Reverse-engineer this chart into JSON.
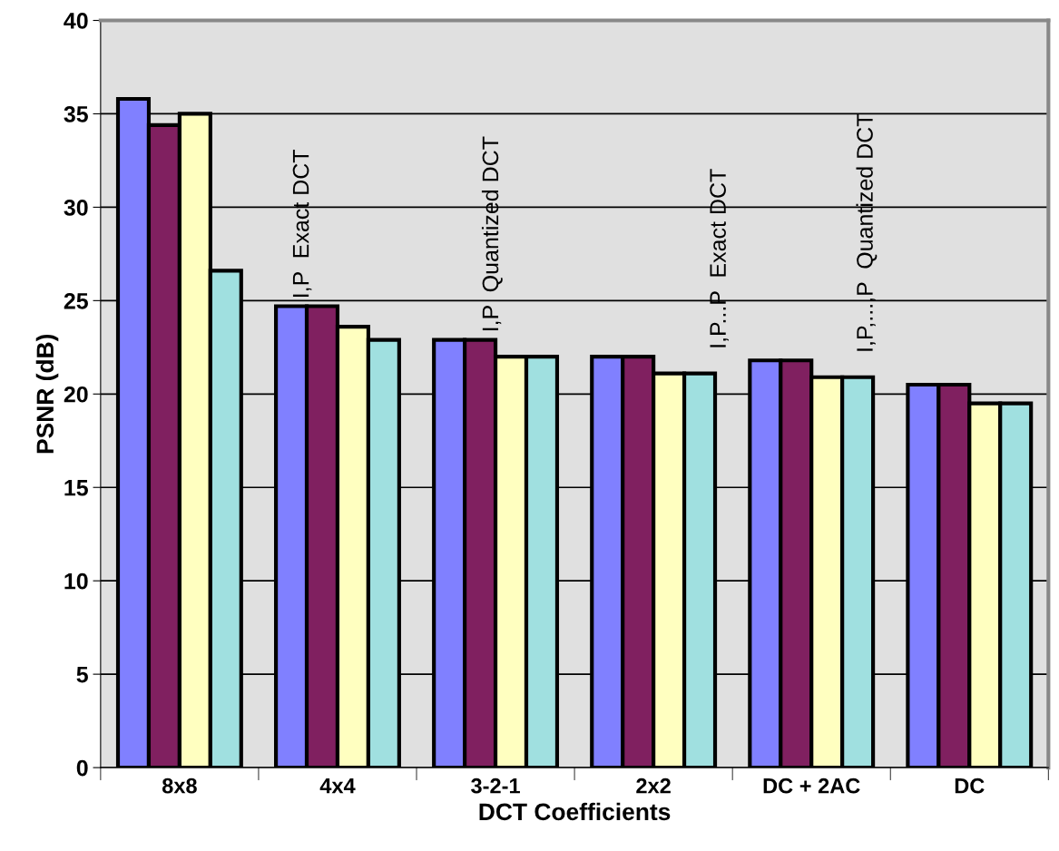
{
  "chart_data": {
    "type": "bar",
    "xlabel": "DCT Coefficients",
    "ylabel": "PSNR (dB)",
    "categories": [
      "8x8",
      "4x4",
      "3-2-1",
      "2x2",
      "DC + 2AC",
      "DC"
    ],
    "series": [
      {
        "color": "#8080ff",
        "values": [
          35.8,
          24.7,
          22.9,
          22.0,
          21.8,
          20.5
        ]
      },
      {
        "color": "#802060",
        "values": [
          34.4,
          24.7,
          22.9,
          22.0,
          21.8,
          20.5
        ]
      },
      {
        "color": "#ffffc0",
        "values": [
          35.0,
          23.6,
          22.0,
          21.1,
          20.9,
          19.5
        ]
      },
      {
        "color": "#a0e0e0",
        "values": [
          26.6,
          22.9,
          22.0,
          21.1,
          20.9,
          19.5
        ]
      }
    ],
    "annotations": [
      "I,P  Exact DCT",
      "I,P  Quantized DCT",
      "I,P...P  Exact DCT",
      "I,P,...,P  Quantized DCT"
    ],
    "ylim": [
      0,
      40
    ],
    "yticks": [
      0,
      5,
      10,
      15,
      20,
      25,
      30,
      35,
      40
    ],
    "grid": "y",
    "legend": false
  }
}
